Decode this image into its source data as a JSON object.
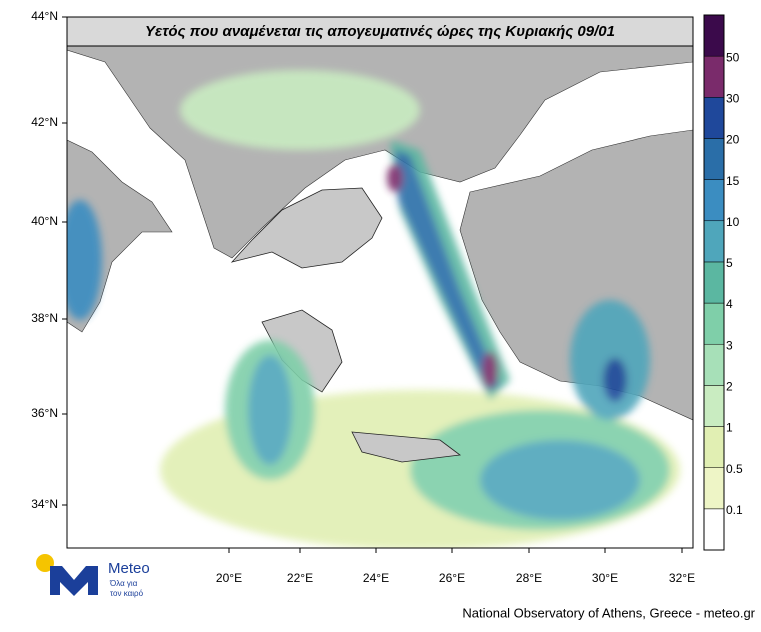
{
  "title": "Υετός που αναμένεται τις απογευματινές ώρες της Κυριακής 09/01",
  "lon_labels": [
    "20°E",
    "22°E",
    "24°E",
    "26°E",
    "28°E",
    "30°E",
    "32°E"
  ],
  "lat_labels": [
    "44°N",
    "42°N",
    "40°N",
    "38°N",
    "36°N",
    "34°N"
  ],
  "colorbar": {
    "labels": [
      "0.1",
      "0.5",
      "1",
      "2",
      "3",
      "4",
      "5",
      "10",
      "15",
      "20",
      "30",
      "50"
    ],
    "colors": [
      "#ffffff",
      "#eef5c6",
      "#e1efb3",
      "#c9ecc1",
      "#a7e0b8",
      "#7fcfa9",
      "#5bb7a1",
      "#4fa6bb",
      "#3b8dc1",
      "#2a6ea8",
      "#1f489b",
      "#7a2b6b",
      "#3b0a4b"
    ]
  },
  "logo": {
    "name": "Meteo",
    "tagline": [
      "Όλα για",
      "τον καιρό"
    ]
  },
  "footer": "National Observatory of Athens, Greece - meteo.gr"
}
